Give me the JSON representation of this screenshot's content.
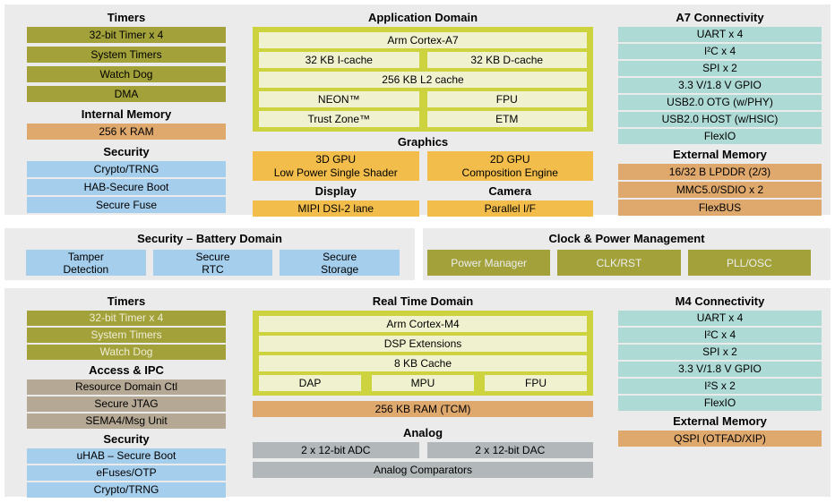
{
  "colors": {
    "panel_bg": "#ebebeb",
    "olive": "#a3a139",
    "blue": "#a5cdec",
    "tan": "#dfa96e",
    "teal": "#aedad5",
    "gray": "#b2b8ba",
    "taupe": "#b5a995",
    "orange": "#f2bd4a",
    "lime_container": "#cdd23f",
    "pale_cell": "#f0f2cf"
  },
  "top": {
    "left": {
      "timers_title": "Timers",
      "timers": [
        "32-bit Timer x 4",
        "System Timers",
        "Watch Dog",
        "DMA"
      ],
      "internal_memory_title": "Internal Memory",
      "internal_memory": [
        "256 K RAM"
      ],
      "security_title": "Security",
      "security": [
        "Crypto/TRNG",
        "HAB-Secure Boot",
        "Secure Fuse"
      ]
    },
    "app_domain": {
      "title": "Application Domain",
      "cpu": "Arm Cortex-A7",
      "icache": "32 KB I-cache",
      "dcache": "32 KB D-cache",
      "l2cache": "256 KB L2 cache",
      "neon": "NEON™",
      "fpu": "FPU",
      "trustzone": "Trust Zone™",
      "etm": "ETM"
    },
    "graphics": {
      "title": "Graphics",
      "gpu3d": "3D GPU\nLow Power Single Shader",
      "gpu2d": "2D GPU\nComposition Engine",
      "display_title": "Display",
      "display": "MIPI DSI-2 lane",
      "camera_title": "Camera",
      "camera": "Parallel I/F"
    },
    "right": {
      "connectivity_title": "A7 Connectivity",
      "connectivity": [
        "UART x 4",
        "I²C x 4",
        "SPI x 2",
        "3.3 V/1.8 V GPIO",
        "USB2.0 OTG (w/PHY)",
        "USB2.0 HOST (w/HSIC)",
        "FlexIO"
      ],
      "external_memory_title": "External Memory",
      "external_memory": [
        "16/32 B LPDDR (2/3)",
        "MMC5.0/SDIO x 2",
        "FlexBUS"
      ]
    }
  },
  "battery_domain": {
    "title": "Security – Battery Domain",
    "items": [
      "Tamper\nDetection",
      "Secure\nRTC",
      "Secure\nStorage"
    ]
  },
  "clock_power": {
    "title": "Clock & Power Management",
    "items": [
      "Power Manager",
      "CLK/RST",
      "PLL/OSC"
    ]
  },
  "bottom": {
    "left": {
      "timers_title": "Timers",
      "timers": [
        "32-bit Timer x 4",
        "System Timers",
        "Watch Dog"
      ],
      "access_title": "Access & IPC",
      "access": [
        "Resource Domain Ctl",
        "Secure JTAG",
        "SEMA4/Msg Unit"
      ],
      "security_title": "Security",
      "security": [
        "uHAB – Secure Boot",
        "eFuses/OTP",
        "Crypto/TRNG"
      ]
    },
    "rt_domain": {
      "title": "Real Time Domain",
      "cpu": "Arm Cortex-M4",
      "dsp": "DSP Extensions",
      "cache": "8 KB Cache",
      "dap": "DAP",
      "mpu": "MPU",
      "fpu": "FPU",
      "tcm": "256 KB RAM (TCM)"
    },
    "analog": {
      "title": "Analog",
      "adc": "2 x 12-bit ADC",
      "dac": "2 x 12-bit DAC",
      "comparators": "Analog Comparators"
    },
    "right": {
      "connectivity_title": "M4 Connectivity",
      "connectivity": [
        "UART x 4",
        "I²C x 4",
        "SPI x 2",
        "3.3 V/1.8 V GPIO",
        "I²S x 2",
        "FlexIO"
      ],
      "external_memory_title": "External Memory",
      "external_memory": [
        "QSPI (OTFAD/XIP)"
      ]
    }
  }
}
